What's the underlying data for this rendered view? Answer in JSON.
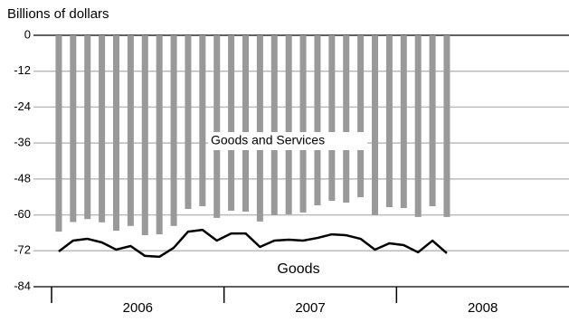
{
  "chart_data": {
    "type": "bar_line",
    "y_label": "Billions of dollars",
    "categories": [
      null,
      null,
      null,
      null,
      null,
      null,
      null,
      null,
      null,
      null,
      null,
      null,
      null,
      null,
      null,
      null,
      null,
      null,
      null,
      null,
      null,
      null,
      null,
      null,
      null,
      null,
      null,
      null
    ],
    "year_labels": [
      "2006",
      "2007",
      "2008"
    ],
    "series": [
      {
        "name": "Goods and Services",
        "type": "bar",
        "color": "#999999",
        "values": [
          -65.6,
          -62.4,
          -61.4,
          -62.5,
          -65.3,
          -63.7,
          -66.8,
          -66.5,
          -63.7,
          -58.0,
          -57.1,
          -61.0,
          -58.6,
          -58.9,
          -62.2,
          -60.1,
          -59.8,
          -59.2,
          -56.8,
          -55.3,
          -55.9,
          -54.1,
          -60.1,
          -57.4,
          -57.7,
          -60.7,
          -57.1,
          -60.7
        ]
      },
      {
        "name": "Goods",
        "type": "line",
        "color": "#000000",
        "values": [
          -72.2,
          -68.6,
          -68.0,
          -69.2,
          -71.6,
          -70.4,
          -73.7,
          -74.0,
          -71.0,
          -65.6,
          -65.0,
          -68.6,
          -66.2,
          -66.2,
          -70.7,
          -68.6,
          -68.3,
          -68.6,
          -67.7,
          -66.5,
          -66.8,
          -68.0,
          -71.6,
          -69.5,
          -70.1,
          -72.5,
          -68.6,
          -72.8
        ]
      }
    ],
    "ylim": [
      -84,
      0
    ],
    "yticks": [
      0,
      -12,
      -24,
      -36,
      -48,
      -60,
      -72,
      -84
    ],
    "grid": true
  }
}
